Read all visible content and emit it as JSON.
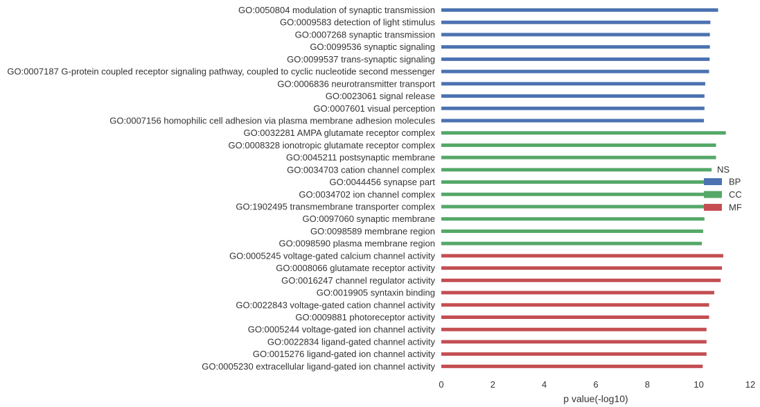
{
  "chart_data": {
    "type": "bar",
    "orientation": "horizontal",
    "xlabel": "p value(-log10)",
    "ylabel": "",
    "xlim": [
      0,
      12
    ],
    "xticks": [
      "0",
      "2",
      "4",
      "6",
      "8",
      "10",
      "12"
    ],
    "grid": false,
    "legend": {
      "title": "NS",
      "placement": "right",
      "entries": [
        {
          "label": "BP",
          "color": "#4c72b0"
        },
        {
          "label": "CC",
          "color": "#55a868"
        },
        {
          "label": "MF",
          "color": "#c44e52"
        }
      ]
    },
    "categories": [
      "GO:0050804 modulation of synaptic transmission",
      "GO:0009583 detection of light stimulus",
      "GO:0007268 synaptic transmission",
      "GO:0099536 synaptic signaling",
      "GO:0099537 trans-synaptic signaling",
      "GO:0007187 G-protein coupled receptor signaling pathway, coupled to cyclic nucleotide second messenger",
      "GO:0006836 neurotransmitter transport",
      "GO:0023061 signal release",
      "GO:0007601 visual perception",
      "GO:0007156 homophilic cell adhesion via plasma membrane adhesion molecules",
      "GO:0032281 AMPA glutamate receptor complex",
      "GO:0008328 ionotropic glutamate receptor complex",
      "GO:0045211 postsynaptic membrane",
      "GO:0034703 cation channel complex",
      "GO:0044456 synapse part",
      "GO:0034702 ion channel complex",
      "GO:1902495 transmembrane transporter complex",
      "GO:0097060 synaptic membrane",
      "GO:0098589 membrane region",
      "GO:0098590 plasma membrane region",
      "GO:0005245 voltage-gated calcium channel activity",
      "GO:0008066 glutamate receptor activity",
      "GO:0016247 channel regulator activity",
      "GO:0019905 syntaxin binding",
      "GO:0022843 voltage-gated cation channel activity",
      "GO:0009881 photoreceptor activity",
      "GO:0005244 voltage-gated ion channel activity",
      "GO:0022834 ligand-gated channel activity",
      "GO:0015276 ligand-gated ion channel activity",
      "GO:0005230 extracellular ligand-gated ion channel activity"
    ],
    "values": [
      10.75,
      10.45,
      10.43,
      10.43,
      10.42,
      10.4,
      10.25,
      10.22,
      10.22,
      10.2,
      11.05,
      10.67,
      10.67,
      10.5,
      10.3,
      10.25,
      10.25,
      10.22,
      10.17,
      10.12,
      10.95,
      10.9,
      10.85,
      10.6,
      10.4,
      10.4,
      10.3,
      10.3,
      10.3,
      10.15
    ],
    "groups": [
      "BP",
      "BP",
      "BP",
      "BP",
      "BP",
      "BP",
      "BP",
      "BP",
      "BP",
      "BP",
      "CC",
      "CC",
      "CC",
      "CC",
      "CC",
      "CC",
      "CC",
      "CC",
      "CC",
      "CC",
      "MF",
      "MF",
      "MF",
      "MF",
      "MF",
      "MF",
      "MF",
      "MF",
      "MF",
      "MF"
    ]
  }
}
